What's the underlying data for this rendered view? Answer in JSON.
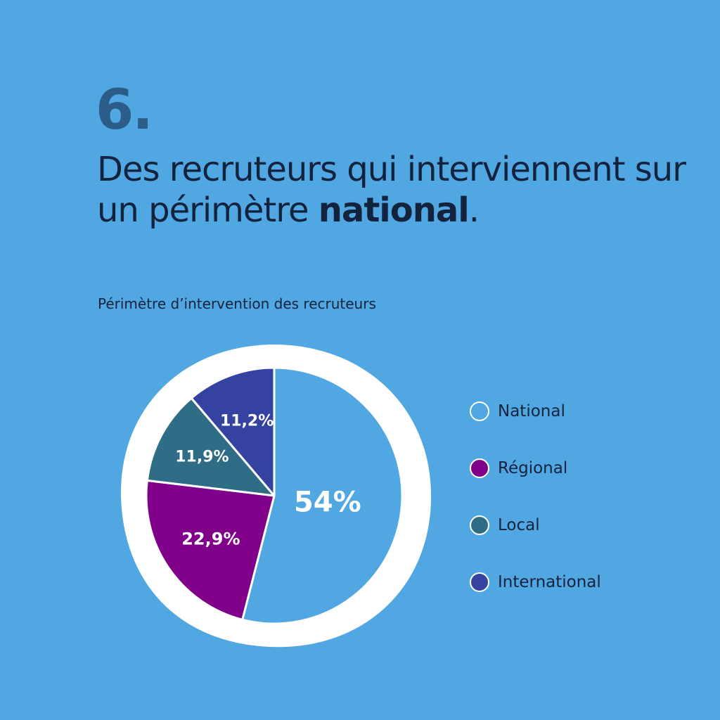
{
  "header": {
    "number": "6.",
    "headline_part1": "Des recruteurs qui interviennent sur un périmètre ",
    "headline_strong": "national",
    "headline_end": "."
  },
  "colors": {
    "background": "#51a7e1",
    "National": "#51a7e1",
    "Régional": "#800089",
    "Local": "#2f6c86",
    "International": "#3443a0"
  },
  "chart_data": {
    "type": "pie",
    "title": "Périmètre d’intervention des recruteurs",
    "slices": [
      {
        "label": "National",
        "value": 54,
        "display": "54%",
        "color": "#51a7e1"
      },
      {
        "label": "Régional",
        "value": 22.9,
        "display": "22,9%",
        "color": "#800089"
      },
      {
        "label": "Local",
        "value": 11.9,
        "display": "11,9%",
        "color": "#2f6c86"
      },
      {
        "label": "International",
        "value": 11.2,
        "display": "11,2%",
        "color": "#3443a0"
      }
    ],
    "legend": [
      "National",
      "Régional",
      "Local",
      "International"
    ],
    "legend_position": "right"
  }
}
